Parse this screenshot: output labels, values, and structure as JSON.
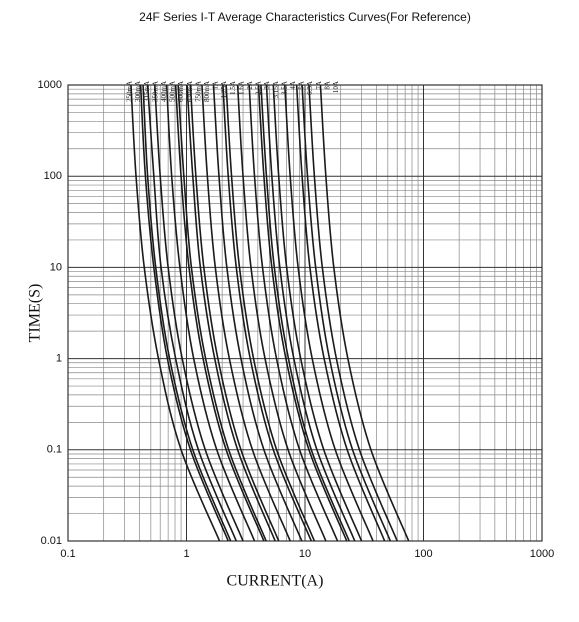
{
  "chart_data": {
    "type": "line",
    "title": "24F Series  I-T  Average Characteristics Curves(For Reference)",
    "x_label": "CURRENT(A)",
    "y_label": "TIME(S)",
    "x_log": true,
    "y_log": true,
    "grid": true,
    "color": "#1a1a1a",
    "xlim": [
      0.1,
      1000
    ],
    "xticks": [
      0.1,
      1,
      10,
      100,
      1000
    ],
    "ylim": [
      0.01,
      1000
    ],
    "yticks": [
      0.01,
      0.1,
      1,
      10,
      100,
      1000
    ],
    "series": [
      {
        "name": "250mA",
        "x": [
          0.34,
          0.375,
          0.44,
          0.58,
          0.9,
          1.9
        ],
        "values": [
          1000,
          100,
          10,
          1,
          0.1,
          0.01
        ]
      },
      {
        "name": "300mA",
        "x": [
          0.41,
          0.45,
          0.53,
          0.69,
          1.08,
          2.25
        ],
        "values": [
          1000,
          100,
          10,
          1,
          0.1,
          0.01
        ]
      },
      {
        "name": "315mA",
        "x": [
          0.43,
          0.47,
          0.55,
          0.72,
          1.13,
          2.36
        ],
        "values": [
          1000,
          100,
          10,
          1,
          0.1,
          0.01
        ]
      },
      {
        "name": "350mA",
        "x": [
          0.47,
          0.53,
          0.61,
          0.81,
          1.26,
          2.63
        ],
        "values": [
          1000,
          100,
          10,
          1,
          0.1,
          0.01
        ]
      },
      {
        "name": "400mA",
        "x": [
          0.54,
          0.6,
          0.7,
          0.92,
          1.44,
          3
        ],
        "values": [
          1000,
          100,
          10,
          1,
          0.1,
          0.01
        ]
      },
      {
        "name": "500mA",
        "x": [
          0.68,
          0.75,
          0.88,
          1.15,
          1.8,
          3.75
        ],
        "values": [
          1000,
          100,
          10,
          1,
          0.1,
          0.01
        ]
      },
      {
        "name": "600mA",
        "x": [
          0.81,
          0.9,
          1.05,
          1.38,
          2.16,
          4.5
        ],
        "values": [
          1000,
          100,
          10,
          1,
          0.1,
          0.01
        ]
      },
      {
        "name": "630mA",
        "x": [
          0.85,
          0.95,
          1.1,
          1.45,
          2.27,
          4.7
        ],
        "values": [
          1000,
          100,
          10,
          1,
          0.1,
          0.01
        ]
      },
      {
        "name": "750mA",
        "x": [
          1.01,
          1.13,
          1.31,
          1.73,
          2.7,
          5.6
        ],
        "values": [
          1000,
          100,
          10,
          1,
          0.1,
          0.01
        ]
      },
      {
        "name": "800mA",
        "x": [
          1.08,
          1.2,
          1.4,
          1.84,
          2.88,
          6
        ],
        "values": [
          1000,
          100,
          10,
          1,
          0.1,
          0.01
        ]
      },
      {
        "name": "1A",
        "x": [
          1.35,
          1.5,
          1.75,
          2.3,
          3.6,
          7.5
        ],
        "values": [
          1000,
          100,
          10,
          1,
          0.1,
          0.01
        ]
      },
      {
        "name": "1.25A",
        "x": [
          1.69,
          1.88,
          2.19,
          2.88,
          4.5,
          9.4
        ],
        "values": [
          1000,
          100,
          10,
          1,
          0.1,
          0.01
        ]
      },
      {
        "name": "1.5A",
        "x": [
          2.03,
          2.25,
          2.63,
          3.45,
          5.4,
          11.3
        ],
        "values": [
          1000,
          100,
          10,
          1,
          0.1,
          0.01
        ]
      },
      {
        "name": "1.6A",
        "x": [
          2.16,
          2.4,
          2.8,
          3.68,
          5.76,
          12
        ],
        "values": [
          1000,
          100,
          10,
          1,
          0.1,
          0.01
        ]
      },
      {
        "name": "2A",
        "x": [
          2.7,
          3,
          3.5,
          4.6,
          7.2,
          15
        ],
        "values": [
          1000,
          100,
          10,
          1,
          0.1,
          0.01
        ]
      },
      {
        "name": "2.5A",
        "x": [
          3.38,
          3.75,
          4.38,
          5.75,
          9,
          18.8
        ],
        "values": [
          1000,
          100,
          10,
          1,
          0.1,
          0.01
        ]
      },
      {
        "name": "3A",
        "x": [
          4.05,
          4.5,
          5.25,
          6.9,
          10.8,
          22.5
        ],
        "values": [
          1000,
          100,
          10,
          1,
          0.1,
          0.01
        ]
      },
      {
        "name": "3.15A",
        "x": [
          4.25,
          4.73,
          5.51,
          7.25,
          11.3,
          23.6
        ],
        "values": [
          1000,
          100,
          10,
          1,
          0.1,
          0.01
        ]
      },
      {
        "name": "3.5A",
        "x": [
          4.73,
          5.25,
          6.13,
          8.05,
          12.6,
          26.3
        ],
        "values": [
          1000,
          100,
          10,
          1,
          0.1,
          0.01
        ]
      },
      {
        "name": "4A",
        "x": [
          5.4,
          6,
          7,
          9.2,
          14.4,
          30
        ],
        "values": [
          1000,
          100,
          10,
          1,
          0.1,
          0.01
        ]
      },
      {
        "name": "5A",
        "x": [
          6.75,
          7.5,
          8.75,
          11.5,
          18,
          37.5
        ],
        "values": [
          1000,
          100,
          10,
          1,
          0.1,
          0.01
        ]
      },
      {
        "name": "6.3A",
        "x": [
          8.5,
          9.45,
          11,
          14.5,
          22.7,
          47
        ],
        "values": [
          1000,
          100,
          10,
          1,
          0.1,
          0.01
        ]
      },
      {
        "name": "7A",
        "x": [
          9.45,
          10.5,
          12.3,
          16.1,
          25.2,
          52.5
        ],
        "values": [
          1000,
          100,
          10,
          1,
          0.1,
          0.01
        ]
      },
      {
        "name": "8A",
        "x": [
          10.8,
          12,
          14,
          18.4,
          28.8,
          60
        ],
        "values": [
          1000,
          100,
          10,
          1,
          0.1,
          0.01
        ]
      },
      {
        "name": "10A",
        "x": [
          13.5,
          15,
          17.5,
          23,
          36,
          75
        ],
        "values": [
          1000,
          100,
          10,
          1,
          0.1,
          0.01
        ]
      }
    ]
  }
}
